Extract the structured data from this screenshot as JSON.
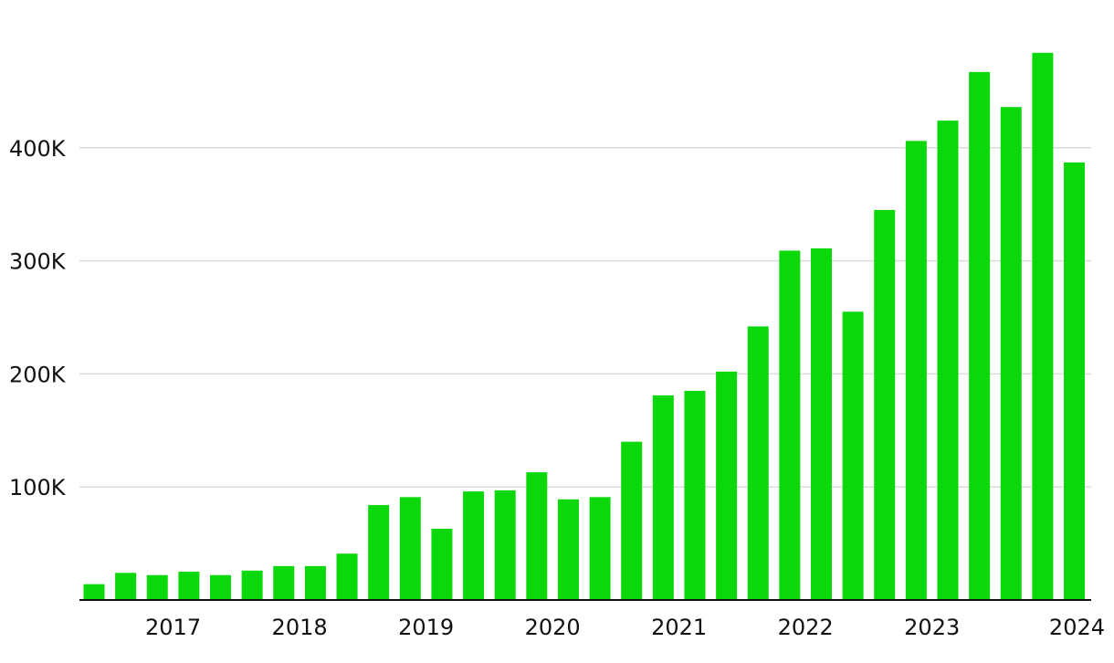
{
  "chart_data": {
    "type": "bar",
    "title": "",
    "xlabel": "",
    "ylabel": "",
    "ylim": [
      0,
      485000
    ],
    "grid": true,
    "bar_color": "#0ad80a",
    "y_ticks": [
      {
        "value": 100000,
        "label": "100K"
      },
      {
        "value": 200000,
        "label": "200K"
      },
      {
        "value": 300000,
        "label": "300K"
      },
      {
        "value": 400000,
        "label": "400K"
      }
    ],
    "x_ticks": [
      {
        "value": 3,
        "label": "2017"
      },
      {
        "value": 7,
        "label": "2018"
      },
      {
        "value": 11,
        "label": "2019"
      },
      {
        "value": 15,
        "label": "2020"
      },
      {
        "value": 19,
        "label": "2021"
      },
      {
        "value": 23,
        "label": "2022"
      },
      {
        "value": 27,
        "label": "2023"
      },
      {
        "value": 31,
        "label": "2024"
      }
    ],
    "values": [
      14000,
      24000,
      22000,
      25000,
      22000,
      26000,
      30000,
      30000,
      41000,
      84000,
      91000,
      63000,
      96000,
      97000,
      113000,
      89000,
      91000,
      140000,
      181000,
      185000,
      202000,
      242000,
      309000,
      311000,
      255000,
      345000,
      406000,
      424000,
      467000,
      436000,
      484000,
      387000
    ]
  }
}
